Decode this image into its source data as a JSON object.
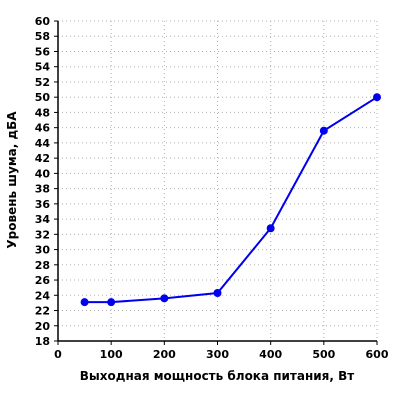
{
  "chart_data": {
    "type": "line",
    "title": "",
    "xlabel": "Выходная мощность блока питания, Вт",
    "ylabel": "Уровень шума, дБА",
    "xlim": [
      0,
      600
    ],
    "ylim": [
      18,
      60
    ],
    "x_ticks": [
      0,
      100,
      200,
      300,
      400,
      500,
      600
    ],
    "y_ticks": [
      18,
      20,
      22,
      24,
      26,
      28,
      30,
      32,
      34,
      36,
      38,
      40,
      42,
      44,
      46,
      48,
      50,
      52,
      54,
      56,
      58,
      60
    ],
    "grid": true,
    "series": [
      {
        "color": "#0000ee",
        "marker": "circle",
        "x": [
          50,
          100,
          200,
          300,
          400,
          500,
          600
        ],
        "y": [
          23.1,
          23.1,
          23.6,
          24.3,
          32.8,
          45.6,
          50.0
        ]
      }
    ]
  }
}
